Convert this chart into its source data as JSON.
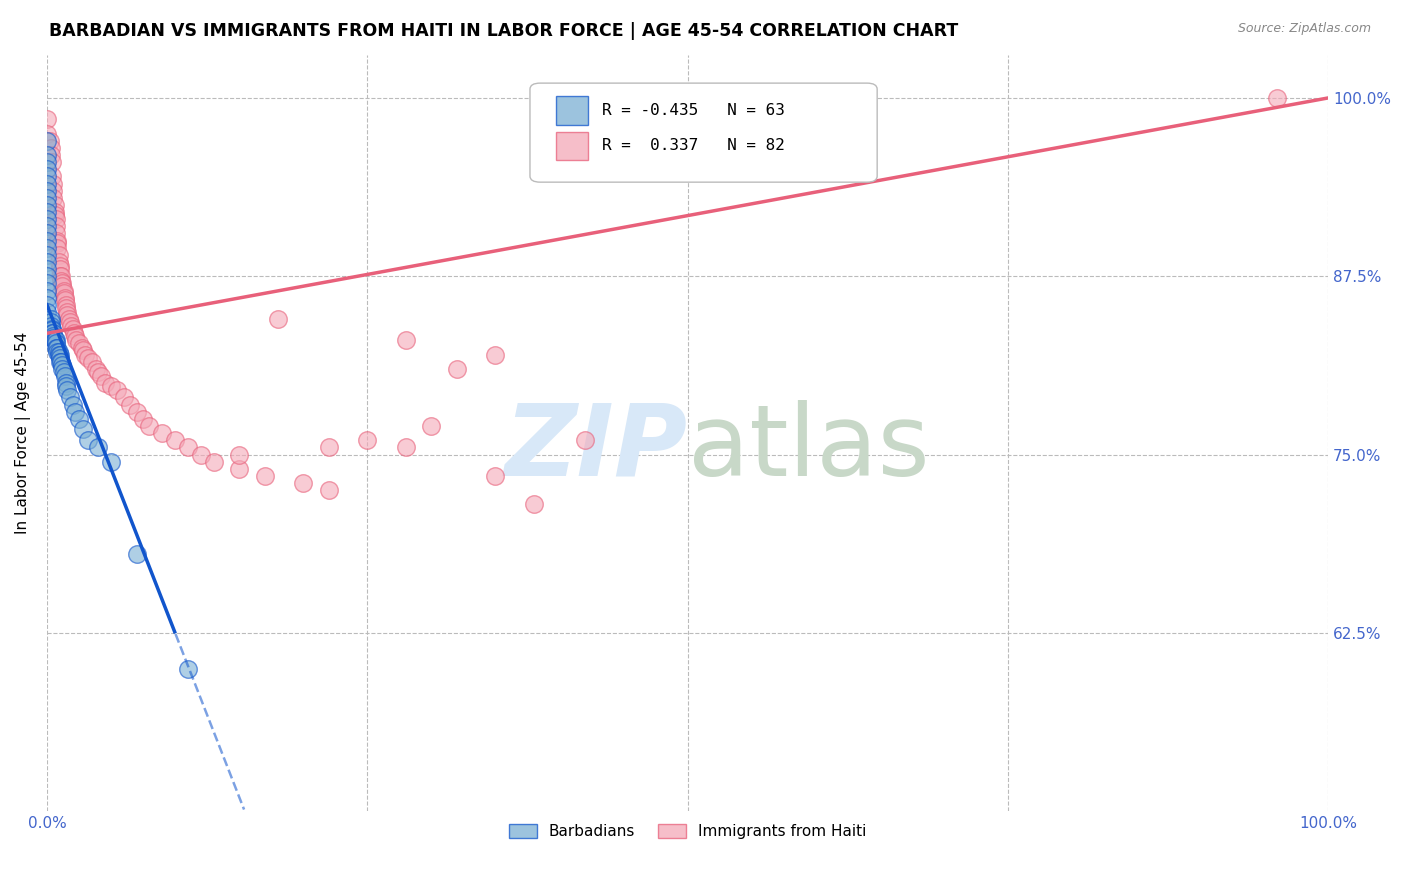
{
  "title": "BARBADIAN VS IMMIGRANTS FROM HAITI IN LABOR FORCE | AGE 45-54 CORRELATION CHART",
  "source": "Source: ZipAtlas.com",
  "ylabel": "In Labor Force | Age 45-54",
  "xlim": [
    0.0,
    1.0
  ],
  "ylim": [
    0.5,
    1.03
  ],
  "yticks": [
    0.625,
    0.75,
    0.875,
    1.0
  ],
  "ytick_labels": [
    "62.5%",
    "75.0%",
    "87.5%",
    "100.0%"
  ],
  "blue_color": "#7BAFD4",
  "pink_color": "#F4A9B8",
  "trendline_blue": "#1155CC",
  "trendline_pink": "#E8607A",
  "background_color": "#FFFFFF",
  "grid_color": "#BBBBBB",
  "axis_color": "#4466CC",
  "title_fontsize": 12.5,
  "label_fontsize": 11,
  "tick_fontsize": 11,
  "watermark_color": "#D8E8F8",
  "blue_scatter_x": [
    0.0,
    0.0,
    0.0,
    0.0,
    0.0,
    0.0,
    0.0,
    0.0,
    0.0,
    0.0,
    0.0,
    0.0,
    0.0,
    0.0,
    0.0,
    0.0,
    0.0,
    0.0,
    0.0,
    0.0,
    0.0,
    0.0,
    0.0,
    0.0,
    0.003,
    0.003,
    0.003,
    0.004,
    0.004,
    0.004,
    0.005,
    0.005,
    0.005,
    0.006,
    0.006,
    0.007,
    0.007,
    0.007,
    0.008,
    0.008,
    0.009,
    0.009,
    0.01,
    0.01,
    0.01,
    0.011,
    0.012,
    0.012,
    0.013,
    0.014,
    0.015,
    0.015,
    0.016,
    0.018,
    0.02,
    0.022,
    0.025,
    0.028,
    0.032,
    0.04,
    0.05,
    0.07,
    0.11
  ],
  "blue_scatter_y": [
    0.97,
    0.96,
    0.955,
    0.95,
    0.945,
    0.94,
    0.935,
    0.93,
    0.925,
    0.92,
    0.915,
    0.91,
    0.905,
    0.9,
    0.895,
    0.89,
    0.885,
    0.88,
    0.875,
    0.87,
    0.865,
    0.86,
    0.855,
    0.85,
    0.845,
    0.843,
    0.84,
    0.838,
    0.837,
    0.835,
    0.835,
    0.833,
    0.832,
    0.83,
    0.83,
    0.83,
    0.828,
    0.825,
    0.825,
    0.822,
    0.822,
    0.82,
    0.82,
    0.818,
    0.815,
    0.815,
    0.813,
    0.81,
    0.808,
    0.805,
    0.8,
    0.798,
    0.795,
    0.79,
    0.785,
    0.78,
    0.775,
    0.768,
    0.76,
    0.755,
    0.745,
    0.68,
    0.6
  ],
  "pink_scatter_x": [
    0.0,
    0.0,
    0.002,
    0.003,
    0.003,
    0.004,
    0.004,
    0.005,
    0.005,
    0.005,
    0.006,
    0.006,
    0.006,
    0.007,
    0.007,
    0.007,
    0.008,
    0.008,
    0.008,
    0.009,
    0.009,
    0.01,
    0.01,
    0.01,
    0.011,
    0.011,
    0.012,
    0.012,
    0.013,
    0.013,
    0.014,
    0.014,
    0.015,
    0.015,
    0.016,
    0.016,
    0.017,
    0.018,
    0.019,
    0.02,
    0.021,
    0.022,
    0.023,
    0.025,
    0.027,
    0.028,
    0.03,
    0.032,
    0.035,
    0.038,
    0.04,
    0.042,
    0.045,
    0.05,
    0.055,
    0.06,
    0.065,
    0.07,
    0.075,
    0.08,
    0.09,
    0.1,
    0.11,
    0.12,
    0.13,
    0.15,
    0.17,
    0.2,
    0.22,
    0.25,
    0.28,
    0.3,
    0.32,
    0.35,
    0.28,
    0.18,
    0.22,
    0.15,
    0.42,
    0.38,
    0.35,
    0.96
  ],
  "pink_scatter_y": [
    0.985,
    0.975,
    0.97,
    0.965,
    0.96,
    0.955,
    0.945,
    0.94,
    0.935,
    0.93,
    0.925,
    0.92,
    0.918,
    0.915,
    0.91,
    0.905,
    0.9,
    0.898,
    0.895,
    0.89,
    0.885,
    0.882,
    0.88,
    0.875,
    0.875,
    0.872,
    0.87,
    0.868,
    0.865,
    0.863,
    0.86,
    0.858,
    0.855,
    0.853,
    0.85,
    0.848,
    0.845,
    0.843,
    0.84,
    0.838,
    0.835,
    0.833,
    0.83,
    0.828,
    0.825,
    0.823,
    0.82,
    0.818,
    0.815,
    0.81,
    0.808,
    0.805,
    0.8,
    0.798,
    0.795,
    0.79,
    0.785,
    0.78,
    0.775,
    0.77,
    0.765,
    0.76,
    0.755,
    0.75,
    0.745,
    0.74,
    0.735,
    0.73,
    0.725,
    0.76,
    0.755,
    0.77,
    0.81,
    0.82,
    0.83,
    0.845,
    0.755,
    0.75,
    0.76,
    0.715,
    0.735,
    1.0
  ],
  "blue_trendline_x": [
    0.0,
    0.13
  ],
  "blue_trendline_y_start": 0.855,
  "blue_trendline_slope": -2.3,
  "pink_trendline_x": [
    0.0,
    1.0
  ],
  "pink_trendline_y_start": 0.835,
  "pink_trendline_slope": 0.165
}
